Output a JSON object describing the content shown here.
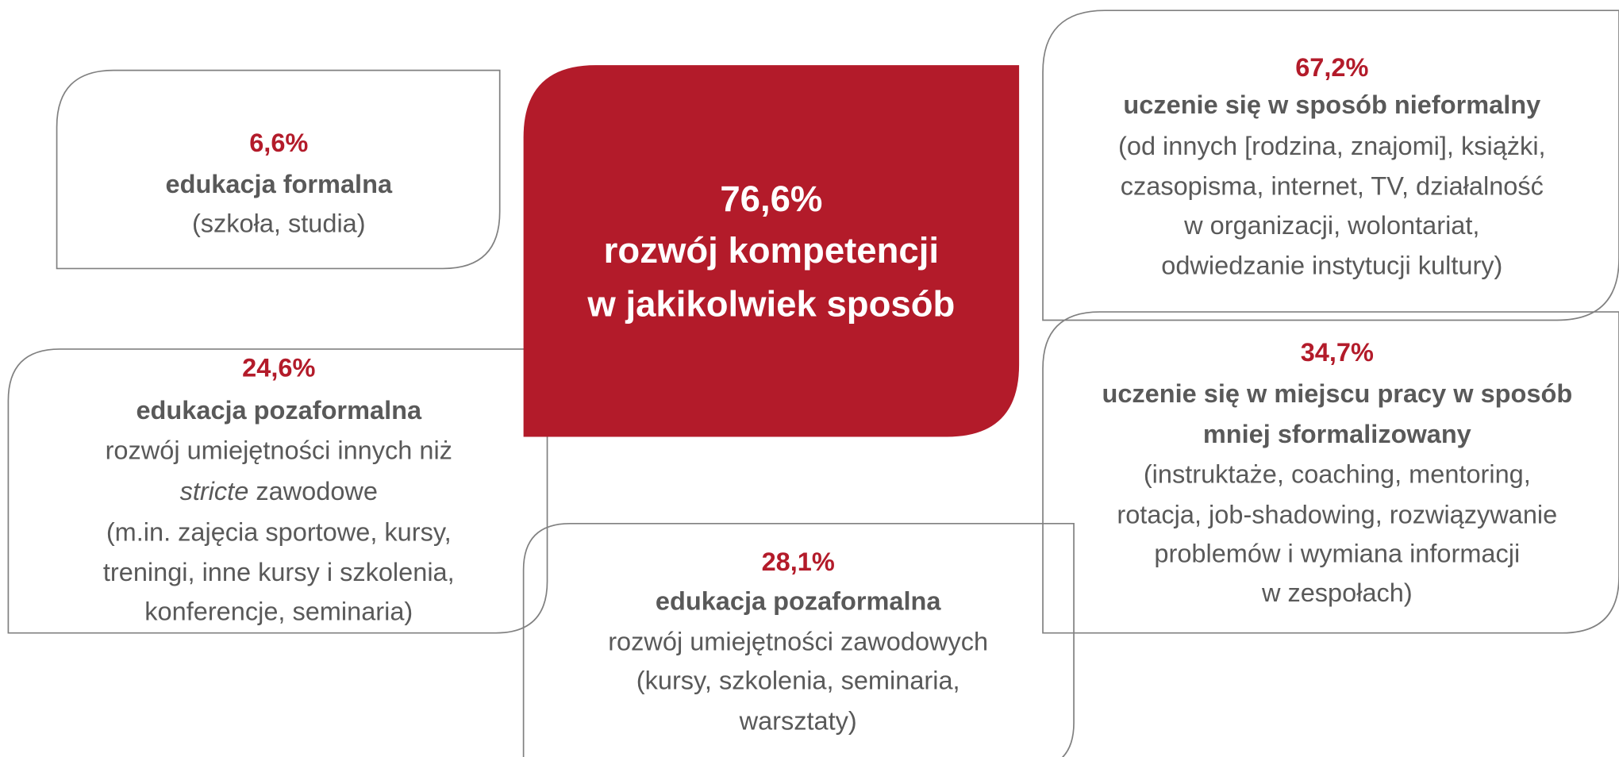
{
  "center": {
    "percent": "76,6%",
    "lines": [
      "rozwój kompetencji",
      "w jakikolwiek sposób"
    ]
  },
  "boxes": [
    {
      "percent": "6,6%",
      "title": [
        "edukacja formalna"
      ],
      "lines": [
        "(szkoła, studia)"
      ]
    },
    {
      "percent": "67,2%",
      "title": [
        "uczenie się w sposób nieformalny"
      ],
      "lines": [
        "(od innych [rodzina, znajomi], książki,",
        "czasopisma, internet, TV, działalność",
        "w organizacji, wolontariat,",
        "odwiedzanie instytucji kultury)"
      ]
    },
    {
      "percent": "24,6%",
      "title": [
        "edukacja pozaformalna"
      ],
      "lines": [
        "rozwój umiejętności innych niż",
        {
          "italic": "stricte",
          "rest": " zawodowe"
        },
        "(m.in. zajęcia sportowe, kursy,",
        "treningi, inne kursy i szkolenia,",
        "konferencje, seminaria)"
      ]
    },
    {
      "percent": "34,7%",
      "title": [
        "uczenie się w miejscu pracy w sposób",
        "mniej sformalizowany"
      ],
      "lines": [
        "(instruktaże, coaching, mentoring,",
        "rotacja, job-shadowing, rozwiązywanie",
        "problemów i wymiana informacji",
        "w zespołach)"
      ]
    },
    {
      "percent": "28,1%",
      "title": [
        "edukacja pozaformalna"
      ],
      "lines": [
        "rozwój umiejętności zawodowych",
        "(kursy, szkolenia, seminaria,",
        "warsztaty)"
      ]
    }
  ]
}
